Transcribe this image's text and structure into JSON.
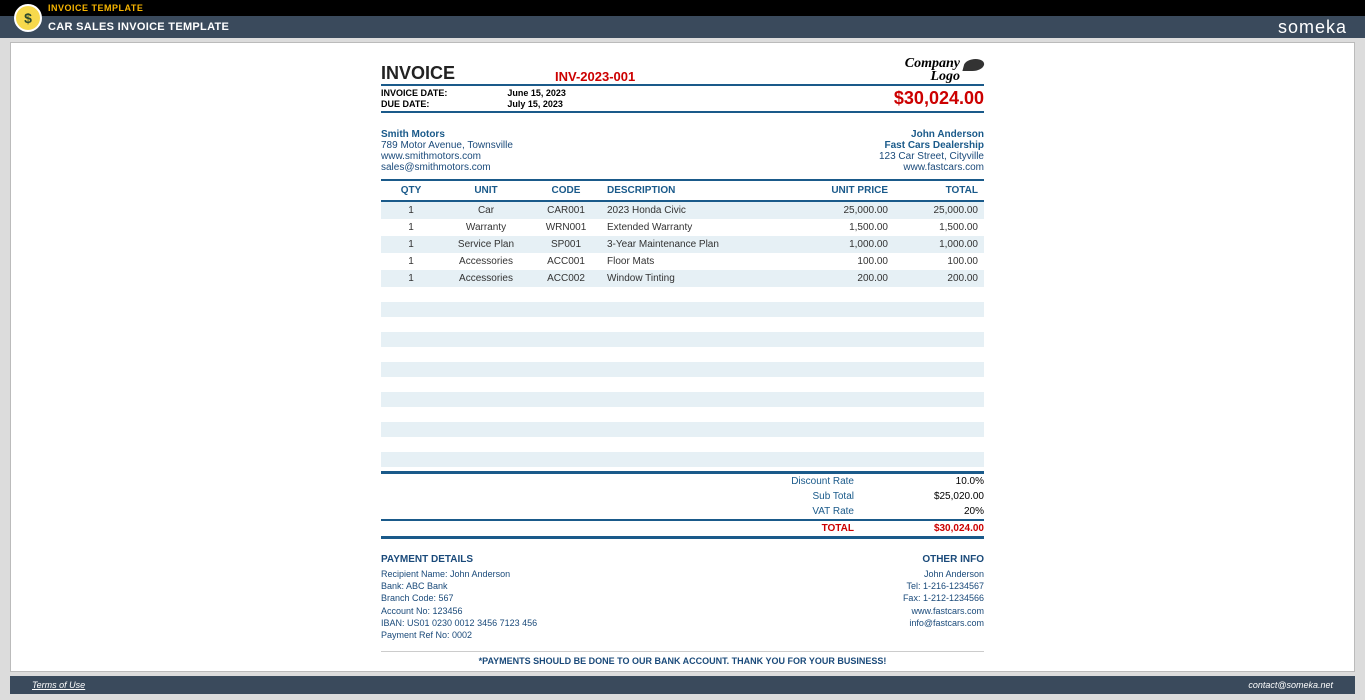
{
  "topbar": {
    "label": "INVOICE TEMPLATE"
  },
  "header": {
    "title": "CAR SALES INVOICE TEMPLATE",
    "brand": "someka",
    "badge": "$"
  },
  "invoice": {
    "title": "INVOICE",
    "number": "INV-2023-001",
    "company_logo_line1": "Company",
    "company_logo_line2": "Logo",
    "date_label": "INVOICE DATE:",
    "due_label": "DUE DATE:",
    "date": "June 15, 2023",
    "due": "July 15, 2023",
    "total_amount": "$30,024.00"
  },
  "seller": {
    "name": "Smith Motors",
    "addr": "789 Motor Avenue, Townsville",
    "web": "www.smithmotors.com",
    "email": "sales@smithmotors.com"
  },
  "buyer": {
    "name": "John Anderson",
    "company": "Fast Cars Dealership",
    "addr": "123 Car Street, Cityville",
    "web": "www.fastcars.com"
  },
  "columns": {
    "qty": "QTY",
    "unit": "UNIT",
    "code": "CODE",
    "desc": "DESCRIPTION",
    "price": "UNIT PRICE",
    "total": "TOTAL"
  },
  "items": [
    {
      "qty": "1",
      "unit": "Car",
      "code": "CAR001",
      "desc": "2023 Honda Civic",
      "price": "25,000.00",
      "total": "25,000.00"
    },
    {
      "qty": "1",
      "unit": "Warranty",
      "code": "WRN001",
      "desc": "Extended Warranty",
      "price": "1,500.00",
      "total": "1,500.00"
    },
    {
      "qty": "1",
      "unit": "Service Plan",
      "code": "SP001",
      "desc": "3-Year Maintenance Plan",
      "price": "1,000.00",
      "total": "1,000.00"
    },
    {
      "qty": "1",
      "unit": "Accessories",
      "code": "ACC001",
      "desc": "Floor Mats",
      "price": "100.00",
      "total": "100.00"
    },
    {
      "qty": "1",
      "unit": "Accessories",
      "code": "ACC002",
      "desc": "Window Tinting",
      "price": "200.00",
      "total": "200.00"
    }
  ],
  "empty_rows": 12,
  "summary": {
    "discount_lbl": "Discount Rate",
    "discount_val": "10.0%",
    "subtotal_lbl": "Sub Total",
    "subtotal_val": "$25,020.00",
    "vat_lbl": "VAT Rate",
    "vat_val": "20%",
    "total_lbl": "TOTAL",
    "total_val": "$30,024.00"
  },
  "payment": {
    "title": "PAYMENT DETAILS",
    "recipient": "Recipient Name: John Anderson",
    "bank": "Bank: ABC Bank",
    "branch": "Branch Code: 567",
    "account": "Account No: 123456",
    "iban": "IBAN: US01 0230 0012 3456 7123 456",
    "ref": "Payment Ref No: 0002"
  },
  "other": {
    "title": "OTHER INFO",
    "name": "John Anderson",
    "tel": "Tel: 1-216-1234567",
    "fax": "Fax: 1-212-1234566",
    "web": "www.fastcars.com",
    "email": "info@fastcars.com"
  },
  "footer_note": "*PAYMENTS SHOULD BE DONE TO OUR BANK ACCOUNT. THANK YOU FOR YOUR BUSINESS!",
  "footerbar": {
    "terms": "Terms of Use",
    "contact": "contact@someka.net"
  },
  "colors": {
    "accent": "#1a5a8a",
    "danger": "#c00000",
    "stripe": "#e6f0f5",
    "topbar": "#000000",
    "headerbar": "#3a4a5c",
    "page_bg": "#dcdcdc"
  }
}
